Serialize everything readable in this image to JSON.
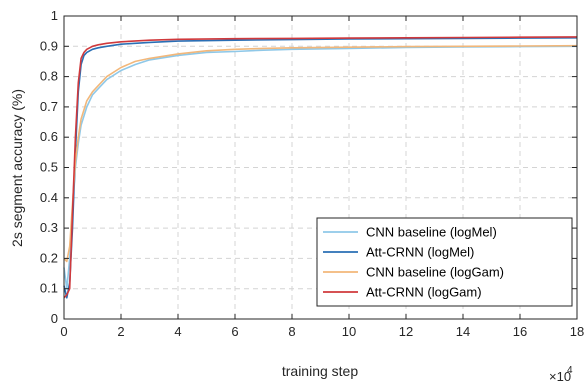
{
  "chart_data": {
    "type": "line",
    "xlabel": "training step",
    "ylabel": "2s segment accuracy (%)",
    "x_exponent_label": "×10",
    "x_exponent_power": "4",
    "xlim": [
      0,
      18
    ],
    "ylim": [
      0,
      1
    ],
    "x_ticks": [
      0,
      2,
      4,
      6,
      8,
      10,
      12,
      14,
      16,
      18
    ],
    "x_tick_labels": [
      "0",
      "2",
      "4",
      "6",
      "8",
      "10",
      "12",
      "14",
      "16",
      "18"
    ],
    "y_ticks": [
      0,
      0.1,
      0.2,
      0.3,
      0.4,
      0.5,
      0.6,
      0.7,
      0.8,
      0.9,
      1
    ],
    "y_tick_labels": [
      "0",
      "0.1",
      "0.2",
      "0.3",
      "0.4",
      "0.5",
      "0.6",
      "0.7",
      "0.8",
      "0.9",
      "1"
    ],
    "grid": true,
    "legend_position": "bottom-right",
    "series": [
      {
        "name": "CNN baseline (logMel)",
        "color": "#8fc8e8",
        "x": [
          0,
          0.1,
          0.2,
          0.3,
          0.4,
          0.5,
          0.6,
          0.8,
          1.0,
          1.2,
          1.5,
          2,
          2.5,
          3,
          4,
          5,
          6,
          7,
          8,
          10,
          12,
          14,
          16,
          18
        ],
        "y": [
          0.17,
          0.1,
          0.2,
          0.35,
          0.5,
          0.58,
          0.64,
          0.7,
          0.74,
          0.76,
          0.79,
          0.82,
          0.84,
          0.855,
          0.87,
          0.88,
          0.883,
          0.887,
          0.89,
          0.893,
          0.896,
          0.898,
          0.899,
          0.9
        ]
      },
      {
        "name": "Att-CRNN (logMel)",
        "color": "#2a6fb5",
        "x": [
          0,
          0.1,
          0.2,
          0.3,
          0.4,
          0.5,
          0.6,
          0.7,
          0.8,
          1.0,
          1.2,
          1.5,
          2,
          3,
          4,
          6,
          8,
          10,
          12,
          14,
          16,
          18
        ],
        "y": [
          0.11,
          0.07,
          0.12,
          0.3,
          0.55,
          0.75,
          0.84,
          0.87,
          0.88,
          0.89,
          0.895,
          0.9,
          0.907,
          0.913,
          0.917,
          0.92,
          0.922,
          0.924,
          0.925,
          0.926,
          0.927,
          0.928
        ]
      },
      {
        "name": "CNN baseline (logGam)",
        "color": "#f2b77a",
        "x": [
          0,
          0.1,
          0.2,
          0.3,
          0.4,
          0.5,
          0.6,
          0.8,
          1.0,
          1.2,
          1.5,
          2,
          2.5,
          3,
          4,
          5,
          6,
          7,
          8,
          10,
          12,
          14,
          16,
          18
        ],
        "y": [
          0.2,
          0.19,
          0.24,
          0.38,
          0.52,
          0.6,
          0.66,
          0.72,
          0.75,
          0.77,
          0.8,
          0.83,
          0.85,
          0.86,
          0.875,
          0.885,
          0.89,
          0.893,
          0.895,
          0.897,
          0.899,
          0.9,
          0.901,
          0.902
        ]
      },
      {
        "name": "Att-CRNN (logGam)",
        "color": "#d0393c",
        "x": [
          0,
          0.1,
          0.2,
          0.3,
          0.4,
          0.5,
          0.6,
          0.7,
          0.8,
          1.0,
          1.2,
          1.5,
          2,
          3,
          4,
          6,
          8,
          10,
          12,
          14,
          16,
          18
        ],
        "y": [
          0.07,
          0.08,
          0.1,
          0.35,
          0.6,
          0.78,
          0.86,
          0.88,
          0.89,
          0.9,
          0.905,
          0.91,
          0.915,
          0.92,
          0.923,
          0.925,
          0.926,
          0.927,
          0.928,
          0.929,
          0.93,
          0.931
        ]
      }
    ]
  }
}
